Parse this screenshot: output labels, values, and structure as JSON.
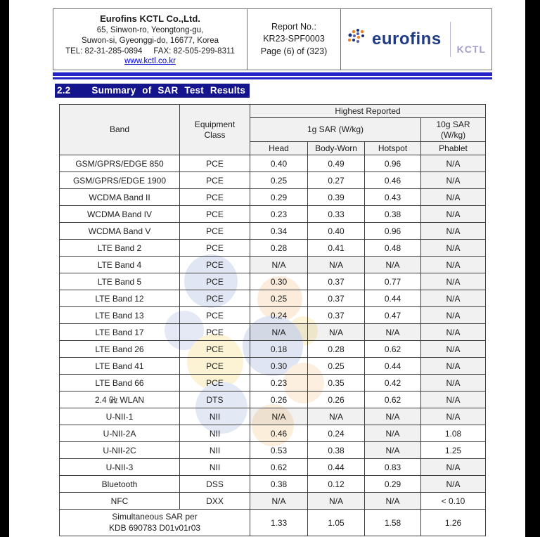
{
  "colors": {
    "rule_blue": "#2323c8",
    "title_highlight_bg": "#14148c",
    "brand_blue": "#1f3b86",
    "brand_lavender": "#a5a0cc",
    "link_blue": "#0000cc",
    "logo_orange": "#f0832a",
    "na_cell_gray": "#f2f2f2"
  },
  "header": {
    "company": {
      "name": "Eurofins KCTL Co.,Ltd.",
      "address_line1": "65, Sinwon-ro, Yeongtong-gu,",
      "address_line2": "Suwon-si, Gyeonggi-do, 16677, Korea",
      "tel": "TEL: 82-31-285-0894",
      "fax": "FAX: 82-505-299-8311",
      "website": "www.kctl.co.kr"
    },
    "report": {
      "label": "Report No.:",
      "number": "KR23-SPF0003",
      "page": "Page (6) of (323)"
    },
    "logo": {
      "brand": "eurofins",
      "sub": "KCTL"
    }
  },
  "section": {
    "number": "2.2",
    "title": "Summary of SAR Test Results"
  },
  "table": {
    "header": {
      "band": "Band",
      "equipment_class": "Equipment Class",
      "highest_reported": "Highest Reported",
      "sar_1g": "1g SAR (W/kg)",
      "sar_10g": "10g SAR (W/kg)",
      "head": "Head",
      "body_worn": "Body-Worn",
      "hotspot": "Hotspot",
      "phablet": "Phablet"
    },
    "rows": [
      {
        "band": "GSM/GPRS/EDGE 850",
        "equipment_class": "PCE",
        "head": "0.40",
        "body_worn": "0.49",
        "hotspot": "0.96",
        "phablet": "N/A",
        "bold": [
          "body_worn",
          "hotspot"
        ]
      },
      {
        "band": "GSM/GPRS/EDGE 1900",
        "equipment_class": "PCE",
        "head": "0.25",
        "body_worn": "0.27",
        "hotspot": "0.46",
        "phablet": "N/A"
      },
      {
        "band": "WCDMA Band II",
        "equipment_class": "PCE",
        "head": "0.29",
        "body_worn": "0.39",
        "hotspot": "0.43",
        "phablet": "N/A"
      },
      {
        "band": "WCDMA Band IV",
        "equipment_class": "PCE",
        "head": "0.23",
        "body_worn": "0.33",
        "hotspot": "0.38",
        "phablet": "N/A"
      },
      {
        "band": "WCDMA Band V",
        "equipment_class": "PCE",
        "head": "0.34",
        "body_worn": "0.40",
        "hotspot": "0.96",
        "phablet": "N/A"
      },
      {
        "band": "LTE Band 2",
        "equipment_class": "PCE",
        "head": "0.28",
        "body_worn": "0.41",
        "hotspot": "0.48",
        "phablet": "N/A"
      },
      {
        "band": "LTE Band 4",
        "equipment_class": "PCE",
        "head": "N/A",
        "body_worn": "N/A",
        "hotspot": "N/A",
        "phablet": "N/A"
      },
      {
        "band": "LTE Band 5",
        "equipment_class": "PCE",
        "head": "0.30",
        "body_worn": "0.37",
        "hotspot": "0.77",
        "phablet": "N/A"
      },
      {
        "band": "LTE Band 12",
        "equipment_class": "PCE",
        "head": "0.25",
        "body_worn": "0.37",
        "hotspot": "0.44",
        "phablet": "N/A"
      },
      {
        "band": "LTE Band 13",
        "equipment_class": "PCE",
        "head": "0.24",
        "body_worn": "0.37",
        "hotspot": "0.47",
        "phablet": "N/A"
      },
      {
        "band": "LTE Band 17",
        "equipment_class": "PCE",
        "head": "N/A",
        "body_worn": "N/A",
        "hotspot": "N/A",
        "phablet": "N/A"
      },
      {
        "band": "LTE Band 26",
        "equipment_class": "PCE",
        "head": "0.18",
        "body_worn": "0.28",
        "hotspot": "0.62",
        "phablet": "N/A"
      },
      {
        "band": "LTE Band 41",
        "equipment_class": "PCE",
        "head": "0.30",
        "body_worn": "0.25",
        "hotspot": "0.44",
        "phablet": "N/A"
      },
      {
        "band": "LTE Band 66",
        "equipment_class": "PCE",
        "head": "0.23",
        "body_worn": "0.35",
        "hotspot": "0.42",
        "phablet": "N/A"
      },
      {
        "band": "2.4 ㎓ WLAN",
        "equipment_class": "DTS",
        "head": "0.26",
        "body_worn": "0.26",
        "hotspot": "0.62",
        "phablet": "N/A"
      },
      {
        "band": "U-NII-1",
        "equipment_class": "NII",
        "head": "N/A",
        "body_worn": "N/A",
        "hotspot": "N/A",
        "phablet": "N/A"
      },
      {
        "band": "U-NII-2A",
        "equipment_class": "NII",
        "head": "0.46",
        "body_worn": "0.24",
        "hotspot": "N/A",
        "phablet": "1.08"
      },
      {
        "band": "U-NII-2C",
        "equipment_class": "NII",
        "head": "0.53",
        "body_worn": "0.38",
        "hotspot": "N/A",
        "phablet": "1.25",
        "bold": [
          "phablet"
        ]
      },
      {
        "band": "U-NII-3",
        "equipment_class": "NII",
        "head": "0.62",
        "body_worn": "0.44",
        "hotspot": "0.83",
        "phablet": "N/A",
        "bold": [
          "head"
        ]
      },
      {
        "band": "Bluetooth",
        "equipment_class": "DSS",
        "head": "0.38",
        "body_worn": "0.12",
        "hotspot": "0.29",
        "phablet": "N/A"
      },
      {
        "band": "NFC",
        "equipment_class": "DXX",
        "head": "N/A",
        "body_worn": "N/A",
        "hotspot": "N/A",
        "phablet": "< 0.10"
      }
    ],
    "simultaneous": {
      "label_line1": "Simultaneous SAR per",
      "label_line2": "KDB 690783 D01v01r03",
      "head": "1.33",
      "body_worn": "1.05",
      "hotspot": "1.58",
      "phablet": "1.26"
    }
  }
}
